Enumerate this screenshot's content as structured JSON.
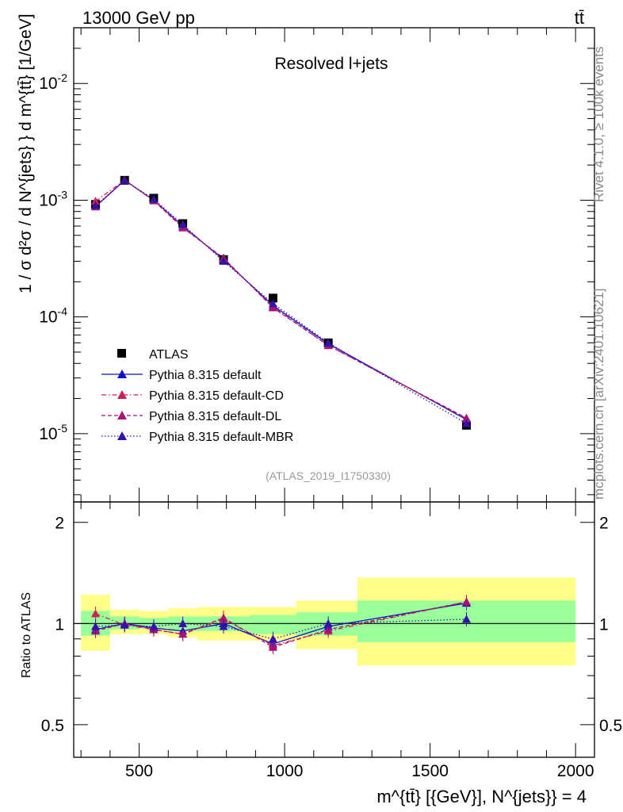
{
  "header": {
    "energy_label": "13000 GeV pp",
    "process_label": "tt̄"
  },
  "side_labels": {
    "rivet": "Rivet 4.1.0, ≥ 100k events",
    "mcplots": "mcplots.cern.ch [arXiv:2401.10621]"
  },
  "colors": {
    "data": "#000000",
    "default": "#1010cc",
    "cd": "#cc2255",
    "dl": "#aa1177",
    "mbr": "#3311aa",
    "band_inner": "#99ff99",
    "band_outer": "#ffff88"
  },
  "chart_data": [
    {
      "type": "line",
      "title": "Resolved l+jets",
      "analysis_tag": "(ATLAS_2019_I1750330)",
      "ylabel": "1 / σ d²σ / d N^{jets} } d m^{tt̄} [1/GeV]",
      "yscale": "log",
      "ylim": [
        2.6e-06,
        0.03
      ],
      "xlim": [
        275,
        2065
      ],
      "ytick_labels": [
        "10^-5",
        "10^-4",
        "10^-3",
        "10^-2"
      ],
      "ytick_values": [
        1e-05,
        0.0001,
        0.001,
        0.01
      ],
      "x": [
        350,
        450,
        550,
        650,
        790,
        960,
        1150,
        1625
      ],
      "bin_edges": [
        300,
        400,
        500,
        600,
        700,
        880,
        1040,
        1250,
        2000
      ],
      "series": [
        {
          "name": "ATLAS",
          "key": "data",
          "marker": "square",
          "values": [
            0.00092,
            0.00148,
            0.00104,
            0.00063,
            0.00031,
            0.000145,
            6e-05,
            1.18e-05
          ]
        },
        {
          "name": "Pythia 8.315 default",
          "key": "default",
          "marker": "triangle",
          "style": "solid",
          "values": [
            0.00088,
            0.00148,
            0.001,
            0.0006,
            0.00031,
            0.000125,
            5.9e-05,
            1.32e-05
          ]
        },
        {
          "name": "Pythia 8.315 default-CD",
          "key": "cd",
          "marker": "triangle",
          "style": "dashdot",
          "values": [
            0.00098,
            0.00148,
            0.001,
            0.00059,
            0.000315,
            0.000122,
            5.7e-05,
            1.35e-05
          ]
        },
        {
          "name": "Pythia 8.315 default-DL",
          "key": "dl",
          "marker": "triangle",
          "style": "dashed",
          "values": [
            0.00088,
            0.00149,
            0.00099,
            0.00058,
            0.00032,
            0.00012,
            5.7e-05,
            1.36e-05
          ]
        },
        {
          "name": "Pythia 8.315 default-MBR",
          "key": "mbr",
          "marker": "triangle",
          "style": "dotted",
          "values": [
            0.0009,
            0.00147,
            0.00102,
            0.00062,
            0.0003,
            0.00013,
            6e-05,
            1.22e-05
          ]
        }
      ]
    },
    {
      "type": "line",
      "title": "",
      "ylabel": "Ratio to ATLAS",
      "xlabel": "m^{tt̄} [{GeV}], N^{jets}} = 4",
      "ylim": [
        0.4,
        2.3
      ],
      "xlim": [
        275,
        2065
      ],
      "ytick_labels": [
        "0.5",
        "1",
        "2"
      ],
      "ytick_values": [
        0.5,
        1,
        2
      ],
      "xtick_labels": [
        "500",
        "1000",
        "1500",
        "2000"
      ],
      "xtick_values": [
        500,
        1000,
        1500,
        2000
      ],
      "x": [
        350,
        450,
        550,
        650,
        790,
        960,
        1150,
        1625
      ],
      "band_inner": [
        [
          0.92,
          1.09
        ],
        [
          0.96,
          1.05
        ],
        [
          0.97,
          1.04
        ],
        [
          0.95,
          1.05
        ],
        [
          0.95,
          1.05
        ],
        [
          0.93,
          1.06
        ],
        [
          0.92,
          1.08
        ],
        [
          0.88,
          1.17
        ]
      ],
      "band_outer": [
        [
          0.83,
          1.22
        ],
        [
          0.93,
          1.1
        ],
        [
          0.93,
          1.09
        ],
        [
          0.91,
          1.11
        ],
        [
          0.89,
          1.12
        ],
        [
          0.89,
          1.12
        ],
        [
          0.84,
          1.17
        ],
        [
          0.75,
          1.37
        ]
      ],
      "series": [
        {
          "name": "Pythia 8.315 default",
          "key": "default",
          "style": "solid",
          "values": [
            0.96,
            1.0,
            0.97,
            0.95,
            1.0,
            0.87,
            0.98,
            1.15
          ]
        },
        {
          "name": "Pythia 8.315 default-CD",
          "key": "cd",
          "style": "dashdot",
          "values": [
            1.07,
            0.99,
            0.96,
            0.93,
            1.03,
            0.86,
            0.95,
            1.16
          ]
        },
        {
          "name": "Pythia 8.315 default-DL",
          "key": "dl",
          "style": "dashed",
          "values": [
            0.95,
            1.0,
            0.96,
            0.93,
            1.04,
            0.85,
            0.96,
            1.16
          ]
        },
        {
          "name": "Pythia 8.315 default-MBR",
          "key": "mbr",
          "style": "dotted",
          "values": [
            0.98,
            0.99,
            0.98,
            1.0,
            0.98,
            0.9,
            1.0,
            1.03
          ]
        }
      ]
    }
  ]
}
